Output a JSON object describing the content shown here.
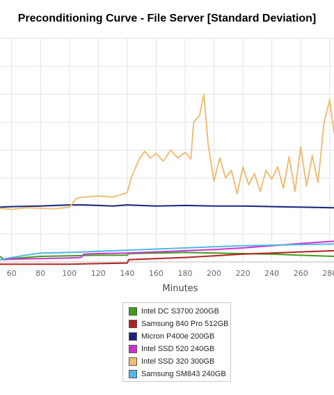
{
  "chart_data": {
    "type": "line",
    "title": "Preconditioning Curve - File Server [Standard Deviation]",
    "xlabel": "Minutes",
    "ylabel": "",
    "xlim": [
      52,
      283
    ],
    "ylim": [
      0,
      20
    ],
    "x_ticks": [
      60,
      80,
      100,
      120,
      140,
      160,
      180,
      200,
      220,
      240,
      260,
      280
    ],
    "x_tick_labels": [
      "60",
      "80",
      "100",
      "120",
      "140",
      "160",
      "180",
      "200",
      "220",
      "240",
      "260",
      "280"
    ],
    "grid": true,
    "legend_position": "bottom",
    "series": [
      {
        "name": "Intel DC S3700 200GB",
        "color": "#3f9c1c",
        "x": [
          52,
          55,
          60,
          70,
          80,
          100,
          120,
          140,
          141,
          160,
          180,
          200,
          220,
          240,
          260,
          283
        ],
        "y": [
          0.5,
          0.2,
          0.3,
          0.4,
          0.5,
          0.55,
          0.6,
          0.6,
          0.75,
          0.8,
          0.85,
          0.8,
          0.75,
          0.7,
          0.6,
          0.5
        ]
      },
      {
        "name": "Samsung 840 Pro 512GB",
        "color": "#b22222",
        "x": [
          52,
          60,
          80,
          100,
          120,
          140,
          141,
          160,
          180,
          200,
          220,
          240,
          260,
          283
        ],
        "y": [
          -0.2,
          -0.2,
          -0.2,
          -0.2,
          -0.15,
          -0.1,
          0.2,
          0.3,
          0.4,
          0.55,
          0.7,
          0.8,
          0.9,
          1.0
        ]
      },
      {
        "name": "Micron P400e 200GB",
        "color": "#1a237e",
        "x": [
          52,
          60,
          80,
          100,
          110,
          120,
          130,
          140,
          160,
          180,
          200,
          220,
          240,
          260,
          283
        ],
        "y": [
          4.9,
          4.95,
          5.0,
          5.1,
          5.1,
          5.05,
          5.0,
          5.1,
          5.0,
          5.05,
          5.0,
          5.0,
          4.95,
          4.9,
          4.85
        ]
      },
      {
        "name": "Intel SSD 520 240GB",
        "color": "#cc33cc",
        "x": [
          52,
          60,
          80,
          100,
          108,
          110,
          120,
          140,
          160,
          180,
          200,
          220,
          240,
          260,
          283
        ],
        "y": [
          0.2,
          0.25,
          0.3,
          0.35,
          0.4,
          0.7,
          0.75,
          0.8,
          0.9,
          1.0,
          1.1,
          1.25,
          1.45,
          1.65,
          1.85
        ]
      },
      {
        "name": "Intel SSD 320 300GB",
        "color": "#eebe74",
        "x": [
          52,
          60,
          70,
          80,
          90,
          100,
          105,
          110,
          120,
          130,
          140,
          143,
          148,
          152,
          156,
          160,
          165,
          170,
          175,
          180,
          184,
          186,
          190,
          193,
          196,
          200,
          204,
          208,
          212,
          216,
          220,
          224,
          228,
          232,
          236,
          240,
          244,
          248,
          252,
          256,
          260,
          264,
          268,
          272,
          276,
          280,
          283
        ],
        "y": [
          4.8,
          4.7,
          4.85,
          4.8,
          4.75,
          4.9,
          5.7,
          5.8,
          5.9,
          5.8,
          6.2,
          7.6,
          9.1,
          9.9,
          9.3,
          9.7,
          9.0,
          10.0,
          9.3,
          9.8,
          9.2,
          12.5,
          13.1,
          15.0,
          10.5,
          7.2,
          9.3,
          7.5,
          8.2,
          6.1,
          8.5,
          6.9,
          7.9,
          6.3,
          8.2,
          7.4,
          8.5,
          6.6,
          9.4,
          6.3,
          10.3,
          6.8,
          9.5,
          7.1,
          12.4,
          14.5,
          11.5
        ]
      },
      {
        "name": "Samsung SM843 240GB",
        "color": "#4fb8e8",
        "x": [
          52,
          60,
          70,
          75,
          80,
          100,
          120,
          140,
          160,
          180,
          200,
          220,
          240,
          260,
          283
        ],
        "y": [
          0.2,
          0.4,
          0.6,
          0.7,
          0.8,
          0.85,
          0.95,
          1.05,
          1.15,
          1.25,
          1.35,
          1.45,
          1.5,
          1.55,
          1.6
        ]
      }
    ]
  }
}
